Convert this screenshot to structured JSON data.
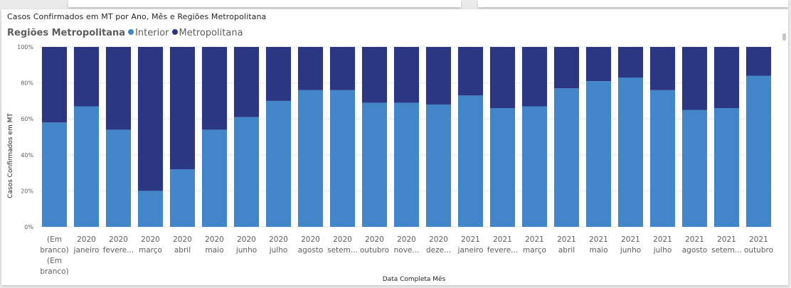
{
  "chart_data": {
    "type": "bar",
    "stacked": "100%",
    "title": "Casos Confirmados em MT por Ano, Mês e Regiões Metropolitana",
    "legend_title": "Regiões Metropolitana",
    "legend_position": "top-left",
    "xlabel": "Data Completa Mês",
    "ylabel": "Casos Confirmados em MT",
    "ylim": [
      0,
      100
    ],
    "yticks": [
      "0%",
      "20%",
      "40%",
      "60%",
      "80%",
      "100%"
    ],
    "grid": true,
    "categories": [
      [
        "(Em",
        "branco)",
        "(Em",
        "branco)"
      ],
      [
        "2020",
        "janeiro"
      ],
      [
        "2020",
        "fevere..."
      ],
      [
        "2020",
        "março"
      ],
      [
        "2020",
        "abril"
      ],
      [
        "2020",
        "maio"
      ],
      [
        "2020",
        "junho"
      ],
      [
        "2020",
        "julho"
      ],
      [
        "2020",
        "agosto"
      ],
      [
        "2020",
        "setem..."
      ],
      [
        "2020",
        "outubro"
      ],
      [
        "2020",
        "nove..."
      ],
      [
        "2020",
        "deze..."
      ],
      [
        "2021",
        "janeiro"
      ],
      [
        "2021",
        "fevere..."
      ],
      [
        "2021",
        "março"
      ],
      [
        "2021",
        "abril"
      ],
      [
        "2021",
        "maio"
      ],
      [
        "2021",
        "junho"
      ],
      [
        "2021",
        "julho"
      ],
      [
        "2021",
        "agosto"
      ],
      [
        "2021",
        "setem..."
      ],
      [
        "2021",
        "outubro"
      ]
    ],
    "series": [
      {
        "name": "Interior",
        "color": "#4285c9",
        "values": [
          58,
          67,
          54,
          20,
          32,
          54,
          61,
          70,
          76,
          76,
          69,
          69,
          68,
          73,
          66,
          67,
          77,
          81,
          83,
          76,
          65,
          66,
          84
        ]
      },
      {
        "name": "Metropolitana",
        "color": "#2b3783",
        "values": [
          42,
          33,
          46,
          80,
          68,
          46,
          39,
          30,
          24,
          24,
          31,
          31,
          32,
          27,
          34,
          33,
          23,
          19,
          17,
          24,
          35,
          34,
          16
        ]
      }
    ]
  }
}
